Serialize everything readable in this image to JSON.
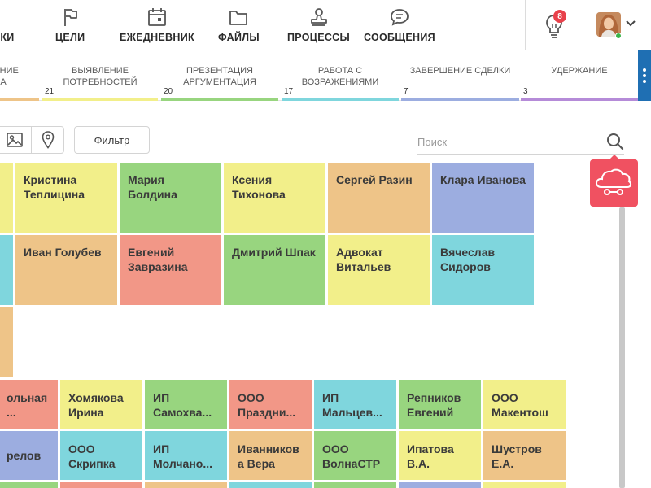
{
  "colors": {
    "yellow": "#f2ef8a",
    "green": "#98d57f",
    "orange": "#eec488",
    "blue": "#9cade0",
    "cyan": "#7fd6dd",
    "salmon": "#f29787",
    "badge_red": "#e8414b",
    "widget_pink": "#f05161",
    "accent_blue": "#1f6fb3"
  },
  "nav": {
    "items": [
      {
        "label": "ТКИ",
        "icon": "tasks-icon"
      },
      {
        "label": "ЦЕЛИ",
        "icon": "flag-icon"
      },
      {
        "label": "ЕЖЕДНЕВНИК",
        "icon": "calendar-icon"
      },
      {
        "label": "ФАЙЛЫ",
        "icon": "folder-icon"
      },
      {
        "label": "ПРОЦЕССЫ",
        "icon": "stamp-icon"
      },
      {
        "label": "СООБЩЕНИЯ",
        "icon": "chat-icon"
      }
    ],
    "notifications_count": "8"
  },
  "stages": [
    {
      "label": "ЛЕНИЕ\nА",
      "count": "",
      "color": "#eec488"
    },
    {
      "label": "ВЫЯВЛЕНИЕ\nПОТРЕБНОСТЕЙ",
      "count": "21",
      "color": "#f2ef8a"
    },
    {
      "label": "ПРЕЗЕНТАЦИЯ\nАРГУМЕНТАЦИЯ",
      "count": "20",
      "color": "#98d57f"
    },
    {
      "label": "РАБОТА С\nВОЗРАЖЕНИЯМИ",
      "count": "17",
      "color": "#7fd6dd"
    },
    {
      "label": "ЗАВЕРШЕНИЕ СДЕЛКИ",
      "count": "7",
      "color": "#9cade0"
    },
    {
      "label": "УДЕРЖАНИЕ",
      "count": "3",
      "color": "#b58bd8"
    }
  ],
  "toolbar": {
    "filter_label": "Фильтр",
    "search_placeholder": "Поиск"
  },
  "cards_top": [
    {
      "name": "",
      "color": "yellow"
    },
    {
      "name": "Кристина Теплицина",
      "color": "yellow"
    },
    {
      "name": "Мария Болдина",
      "color": "green"
    },
    {
      "name": "Ксения Тихонова",
      "color": "yellow"
    },
    {
      "name": "Сергей Разин",
      "color": "orange"
    },
    {
      "name": "Клара Иванова",
      "color": "blue"
    },
    {
      "name": "",
      "color": "cyan"
    },
    {
      "name": "Иван Голубев",
      "color": "orange"
    },
    {
      "name": "Евгений Завразина",
      "color": "salmon"
    },
    {
      "name": "Дмитрий Шпак",
      "color": "green"
    },
    {
      "name": "Адвокат Витальев",
      "color": "yellow"
    },
    {
      "name": "Вячеслав Сидоров",
      "color": "cyan"
    },
    {
      "name": "",
      "color": "orange"
    }
  ],
  "cards_bottom": [
    {
      "name": "ольная\n...",
      "color": "salmon"
    },
    {
      "name": "Хомякова Ирина",
      "color": "yellow"
    },
    {
      "name": "ИП\nСамохва...",
      "color": "green"
    },
    {
      "name": "ООО\nПраздни...",
      "color": "salmon"
    },
    {
      "name": "ИП\nМальцев...",
      "color": "cyan"
    },
    {
      "name": "Репников Евгений",
      "color": "green"
    },
    {
      "name": "ООО\nМакентош",
      "color": "yellow"
    },
    {
      "name": "релов",
      "color": "blue"
    },
    {
      "name": "ООО\nСкрипка",
      "color": "cyan"
    },
    {
      "name": "ИП\nМолчано...",
      "color": "cyan"
    },
    {
      "name": "Иванников\nа Вера",
      "color": "orange"
    },
    {
      "name": "ООО\nВолнаСТР",
      "color": "green"
    },
    {
      "name": "Ипатова\nВ.А.",
      "color": "yellow"
    },
    {
      "name": "Шустров\nЕ.А.",
      "color": "orange"
    }
  ]
}
